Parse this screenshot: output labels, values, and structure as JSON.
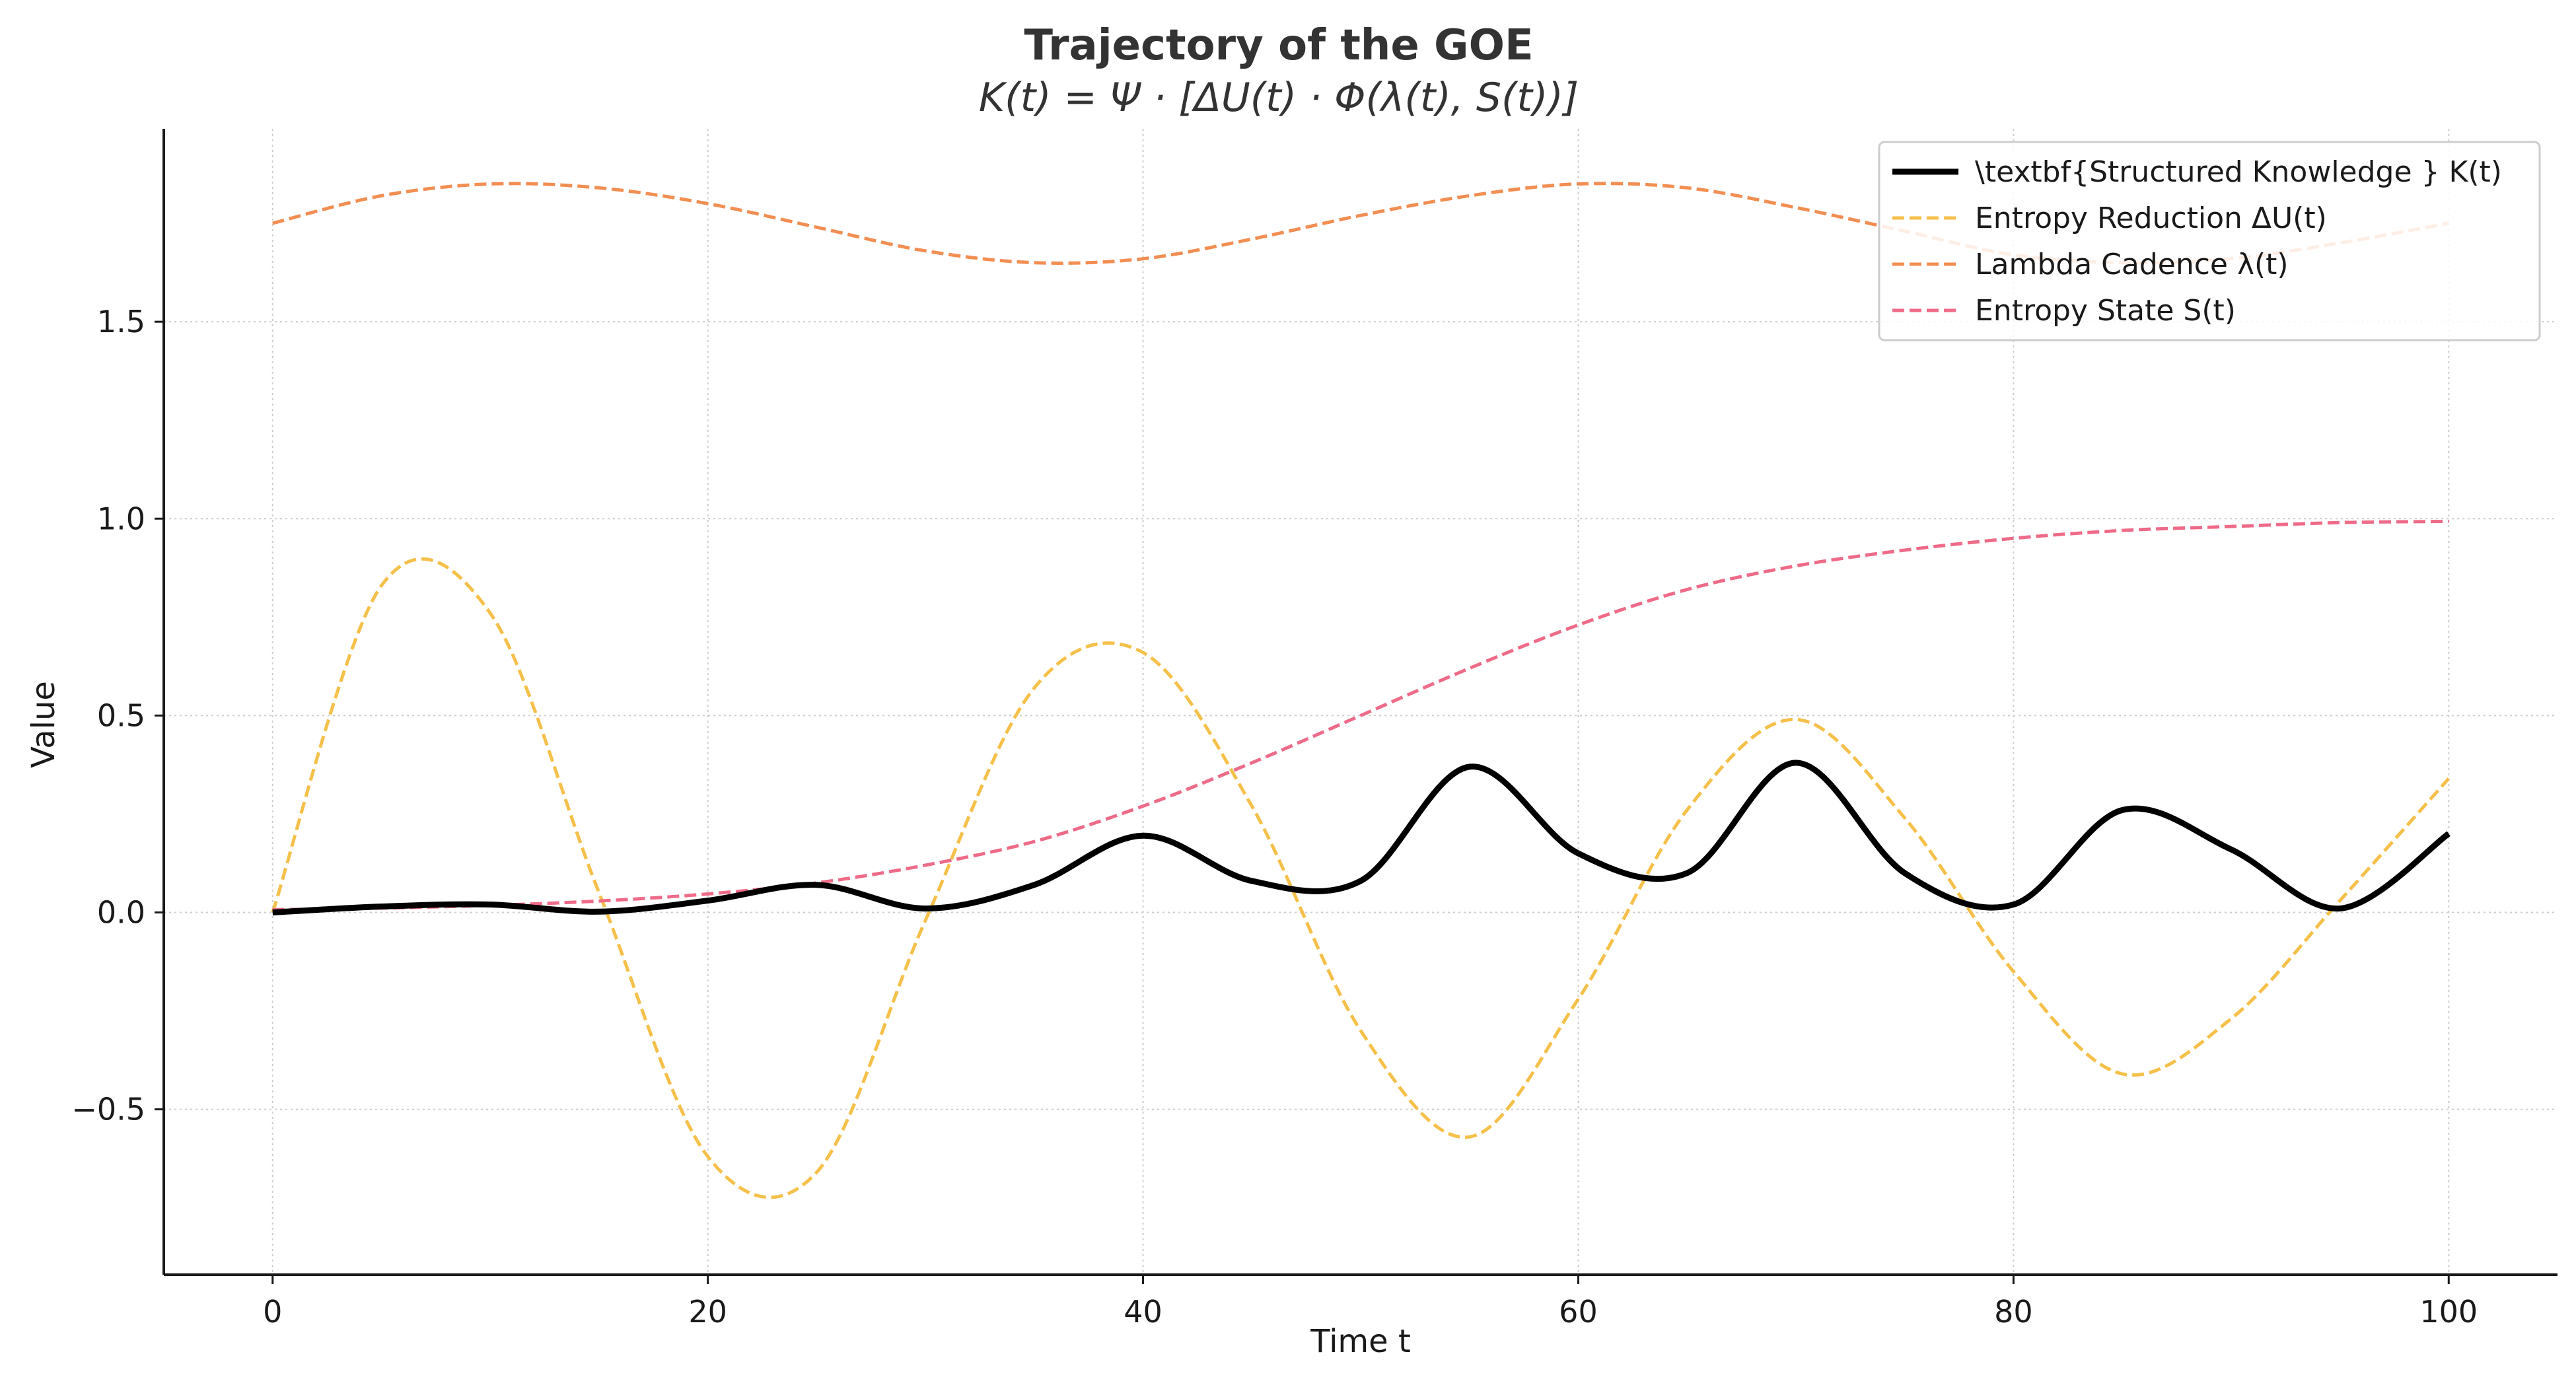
{
  "chart_data": {
    "type": "line",
    "title": "Trajectory of the GOE",
    "subtitle": "K(t) = Ψ · [ΔU(t) · Φ(λ(t), S(t))]",
    "xlabel": "Time t",
    "ylabel": "Value",
    "xlim": [
      -5,
      105
    ],
    "ylim": [
      -0.92,
      1.99
    ],
    "x_ticks": [
      "0",
      "20",
      "40",
      "60",
      "80",
      "100"
    ],
    "y_ticks": [
      "−0.5",
      "0.0",
      "0.5",
      "1.0",
      "1.5"
    ],
    "grid": true,
    "legend_position": "top-right",
    "x": [
      0,
      5,
      10,
      15,
      20,
      25,
      30,
      35,
      40,
      45,
      50,
      55,
      60,
      65,
      70,
      75,
      80,
      85,
      90,
      95,
      100
    ],
    "series": [
      {
        "name": "\\textbf{Structured Knowledge } K(t)",
        "color": "#000000",
        "style": "solid",
        "values": [
          0.0,
          0.015,
          0.02,
          0.002,
          0.03,
          0.07,
          0.01,
          0.07,
          0.195,
          0.08,
          0.08,
          0.37,
          0.15,
          0.1,
          0.38,
          0.1,
          0.02,
          0.26,
          0.16,
          0.01,
          0.2
        ]
      },
      {
        "name": "Entropy Reduction ΔU(t)",
        "color": "#f5c04a",
        "style": "dashed",
        "values": [
          0.0,
          0.83,
          0.76,
          0.05,
          -0.62,
          -0.66,
          -0.02,
          0.57,
          0.66,
          0.27,
          -0.3,
          -0.57,
          -0.22,
          0.26,
          0.49,
          0.24,
          -0.15,
          -0.41,
          -0.27,
          0.03,
          0.34
        ]
      },
      {
        "name": "Lambda Cadence λ(t)",
        "color": "#f28e52",
        "style": "dashed",
        "values": [
          1.75,
          1.82,
          1.85,
          1.84,
          1.8,
          1.74,
          1.68,
          1.65,
          1.66,
          1.71,
          1.77,
          1.82,
          1.85,
          1.84,
          1.79,
          1.73,
          1.67,
          1.65,
          1.66,
          1.7,
          1.75
        ]
      },
      {
        "name": "Entropy State S(t)",
        "color": "#ee6b88",
        "style": "dashed",
        "values": [
          0.007,
          0.011,
          0.018,
          0.029,
          0.047,
          0.075,
          0.12,
          0.18,
          0.27,
          0.38,
          0.5,
          0.62,
          0.73,
          0.82,
          0.88,
          0.92,
          0.95,
          0.97,
          0.98,
          0.99,
          0.993
        ]
      }
    ]
  }
}
